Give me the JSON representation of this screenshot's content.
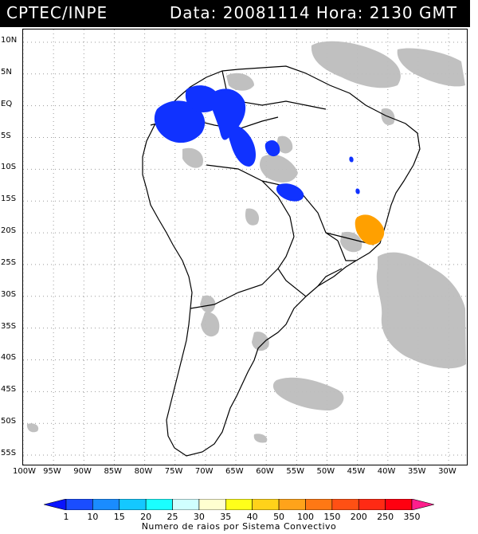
{
  "header": {
    "source": "CPTEC/INPE",
    "datetime": "Data: 20081114 Hora: 2130 GMT"
  },
  "map": {
    "lat_labels": [
      "10N",
      "5N",
      "EQ",
      "5S",
      "10S",
      "15S",
      "20S",
      "25S",
      "30S",
      "35S",
      "40S",
      "45S",
      "50S",
      "55S"
    ],
    "lon_labels": [
      "100W",
      "95W",
      "90W",
      "85W",
      "80W",
      "75W",
      "70W",
      "65W",
      "60W",
      "55W",
      "50W",
      "45W",
      "40W",
      "35W",
      "30W"
    ],
    "lat_range": [
      12,
      -56.5
    ],
    "lon_range": [
      -100,
      -27
    ],
    "colors": {
      "cloud": "#bdbdbd",
      "coast": "#000000",
      "grid": "#9a9a9a",
      "blue_cells": "#1032ff",
      "orange_cells": "#ffa000"
    }
  },
  "legend": {
    "tick_labels": [
      "1",
      "10",
      "15",
      "20",
      "25",
      "30",
      "35",
      "40",
      "50",
      "100",
      "150",
      "200",
      "250",
      "350"
    ],
    "colors": [
      "#0a14ff",
      "#1a4dff",
      "#1a8cff",
      "#14c8ff",
      "#1affff",
      "#d0ffff",
      "#ffffd0",
      "#ffff1a",
      "#ffd21a",
      "#ffa31a",
      "#ff7814",
      "#ff5014",
      "#ff2a14",
      "#ff0010",
      "#ff1e8c"
    ],
    "title": "Numero de raios por Sistema Convectivo"
  }
}
